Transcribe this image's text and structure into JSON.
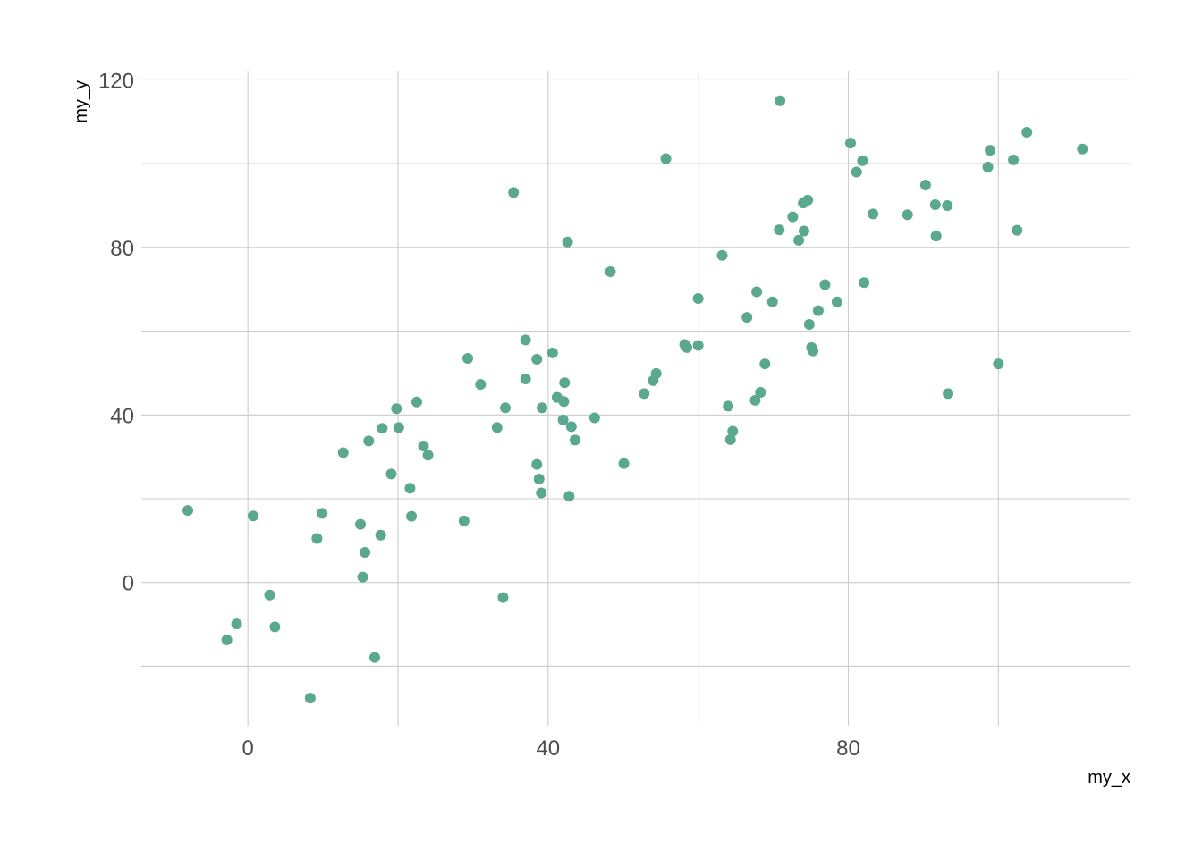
{
  "chart_data": {
    "type": "scatter",
    "title": "",
    "xlabel": "my_x",
    "ylabel": "my_y",
    "xlim": [
      -14.2,
      117.6
    ],
    "ylim": [
      -34.2,
      122.0
    ],
    "x_ticks": [
      0,
      40,
      80
    ],
    "x_minor_gridlines": [
      20,
      60,
      100
    ],
    "y_ticks": [
      0,
      40,
      80,
      120
    ],
    "y_minor_gridlines": [
      -20,
      20,
      60,
      100
    ],
    "grid": true,
    "point_color": "#5aa88f",
    "points": [
      {
        "x": -8.0,
        "y": 17.2
      },
      {
        "x": -2.8,
        "y": -13.7
      },
      {
        "x": -1.5,
        "y": -9.9
      },
      {
        "x": 0.7,
        "y": 15.9
      },
      {
        "x": 2.9,
        "y": -3.0
      },
      {
        "x": 3.6,
        "y": -10.6
      },
      {
        "x": 8.3,
        "y": -27.6
      },
      {
        "x": 9.2,
        "y": 10.5
      },
      {
        "x": 9.9,
        "y": 16.5
      },
      {
        "x": 12.7,
        "y": 31.0
      },
      {
        "x": 15.0,
        "y": 13.9
      },
      {
        "x": 15.3,
        "y": 1.3
      },
      {
        "x": 15.6,
        "y": 7.2
      },
      {
        "x": 16.1,
        "y": 33.8
      },
      {
        "x": 16.9,
        "y": -17.9
      },
      {
        "x": 17.7,
        "y": 11.3
      },
      {
        "x": 17.9,
        "y": 36.8
      },
      {
        "x": 19.1,
        "y": 25.9
      },
      {
        "x": 19.8,
        "y": 41.5
      },
      {
        "x": 20.1,
        "y": 37.0
      },
      {
        "x": 21.6,
        "y": 22.5
      },
      {
        "x": 21.8,
        "y": 15.8
      },
      {
        "x": 22.5,
        "y": 43.1
      },
      {
        "x": 23.4,
        "y": 32.6
      },
      {
        "x": 24.0,
        "y": 30.4
      },
      {
        "x": 28.8,
        "y": 14.7
      },
      {
        "x": 29.3,
        "y": 53.5
      },
      {
        "x": 31.0,
        "y": 47.3
      },
      {
        "x": 33.2,
        "y": 37.0
      },
      {
        "x": 34.0,
        "y": -3.6
      },
      {
        "x": 34.3,
        "y": 41.7
      },
      {
        "x": 35.4,
        "y": 93.1
      },
      {
        "x": 37.0,
        "y": 57.9
      },
      {
        "x": 37.0,
        "y": 48.6
      },
      {
        "x": 38.5,
        "y": 53.3
      },
      {
        "x": 38.5,
        "y": 28.2
      },
      {
        "x": 38.8,
        "y": 24.7
      },
      {
        "x": 39.1,
        "y": 21.4
      },
      {
        "x": 39.2,
        "y": 41.7
      },
      {
        "x": 40.6,
        "y": 54.8
      },
      {
        "x": 41.2,
        "y": 44.2
      },
      {
        "x": 42.0,
        "y": 38.8
      },
      {
        "x": 42.1,
        "y": 43.2
      },
      {
        "x": 42.2,
        "y": 47.7
      },
      {
        "x": 42.6,
        "y": 81.3
      },
      {
        "x": 42.8,
        "y": 20.6
      },
      {
        "x": 43.1,
        "y": 37.2
      },
      {
        "x": 43.6,
        "y": 34.0
      },
      {
        "x": 46.2,
        "y": 39.3
      },
      {
        "x": 48.3,
        "y": 74.2
      },
      {
        "x": 50.1,
        "y": 28.4
      },
      {
        "x": 52.8,
        "y": 45.1
      },
      {
        "x": 54.0,
        "y": 48.2
      },
      {
        "x": 54.4,
        "y": 49.9
      },
      {
        "x": 55.7,
        "y": 101.2
      },
      {
        "x": 58.2,
        "y": 56.8
      },
      {
        "x": 58.5,
        "y": 56.1
      },
      {
        "x": 60.0,
        "y": 56.6
      },
      {
        "x": 60.0,
        "y": 67.8
      },
      {
        "x": 63.2,
        "y": 78.1
      },
      {
        "x": 64.0,
        "y": 42.1
      },
      {
        "x": 64.3,
        "y": 34.1
      },
      {
        "x": 64.6,
        "y": 36.1
      },
      {
        "x": 66.5,
        "y": 63.3
      },
      {
        "x": 67.6,
        "y": 43.5
      },
      {
        "x": 67.8,
        "y": 69.4
      },
      {
        "x": 68.3,
        "y": 45.4
      },
      {
        "x": 68.9,
        "y": 52.2
      },
      {
        "x": 69.9,
        "y": 67.0
      },
      {
        "x": 70.8,
        "y": 84.2
      },
      {
        "x": 70.9,
        "y": 115.0
      },
      {
        "x": 72.6,
        "y": 87.3
      },
      {
        "x": 73.4,
        "y": 81.7
      },
      {
        "x": 74.0,
        "y": 90.6
      },
      {
        "x": 74.1,
        "y": 83.9
      },
      {
        "x": 74.6,
        "y": 91.3
      },
      {
        "x": 74.8,
        "y": 61.6
      },
      {
        "x": 75.1,
        "y": 56.1
      },
      {
        "x": 75.3,
        "y": 55.3
      },
      {
        "x": 76.0,
        "y": 64.9
      },
      {
        "x": 76.9,
        "y": 71.1
      },
      {
        "x": 78.5,
        "y": 67.0
      },
      {
        "x": 80.3,
        "y": 104.9
      },
      {
        "x": 81.1,
        "y": 98.0
      },
      {
        "x": 81.9,
        "y": 100.7
      },
      {
        "x": 82.1,
        "y": 71.6
      },
      {
        "x": 83.3,
        "y": 88.0
      },
      {
        "x": 87.9,
        "y": 87.8
      },
      {
        "x": 90.3,
        "y": 94.9
      },
      {
        "x": 91.6,
        "y": 90.2
      },
      {
        "x": 91.7,
        "y": 82.7
      },
      {
        "x": 93.3,
        "y": 45.1
      },
      {
        "x": 93.2,
        "y": 90.0
      },
      {
        "x": 98.6,
        "y": 99.2
      },
      {
        "x": 98.9,
        "y": 103.2
      },
      {
        "x": 100.0,
        "y": 52.2
      },
      {
        "x": 102.0,
        "y": 100.9
      },
      {
        "x": 102.5,
        "y": 84.1
      },
      {
        "x": 103.8,
        "y": 107.5
      },
      {
        "x": 111.2,
        "y": 103.5
      }
    ]
  }
}
